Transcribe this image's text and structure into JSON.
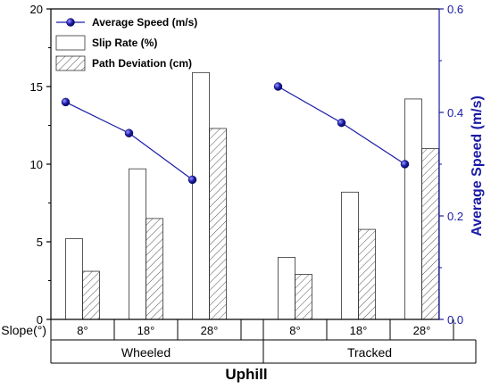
{
  "chart_data": {
    "type": "bar",
    "xlabel": "Uphill",
    "ylabel_right": "Average Speed (m/s)",
    "row_label": "Slope(°)",
    "groups": [
      {
        "name": "Wheeled",
        "categories": [
          "8°",
          "18°",
          "28°"
        ]
      },
      {
        "name": "Tracked",
        "categories": [
          "8°",
          "18°",
          "28°"
        ]
      }
    ],
    "ylim_left": [
      0,
      20
    ],
    "yticks_left": [
      "0",
      "5",
      "10",
      "15",
      "20"
    ],
    "ylim_right": [
      0,
      0.6
    ],
    "yticks_right": [
      "0.0",
      "0.2",
      "0.4",
      "0.6"
    ],
    "series": [
      {
        "name": "Slip Rate (%)",
        "kind": "bar",
        "axis": "left",
        "fill": "#ffffff",
        "values": [
          [
            5.2,
            9.7,
            15.9
          ],
          [
            4.0,
            8.2,
            14.2
          ]
        ]
      },
      {
        "name": "Path Deviation (cm)",
        "kind": "bar-hatched",
        "axis": "left",
        "fill": "#ffffff",
        "values": [
          [
            3.1,
            6.5,
            12.3
          ],
          [
            2.9,
            5.8,
            11.0
          ]
        ]
      },
      {
        "name": "Average Speed (m/s)",
        "kind": "line",
        "axis": "right",
        "color": "#1a1aa6",
        "values": [
          [
            0.42,
            0.36,
            0.27
          ],
          [
            0.45,
            0.38,
            0.3
          ]
        ]
      }
    ],
    "legend": "top-left",
    "grid": false
  },
  "colors": {
    "speed": "#1a1aa6",
    "bar_stroke": "#333333",
    "hatch": "#555555"
  }
}
